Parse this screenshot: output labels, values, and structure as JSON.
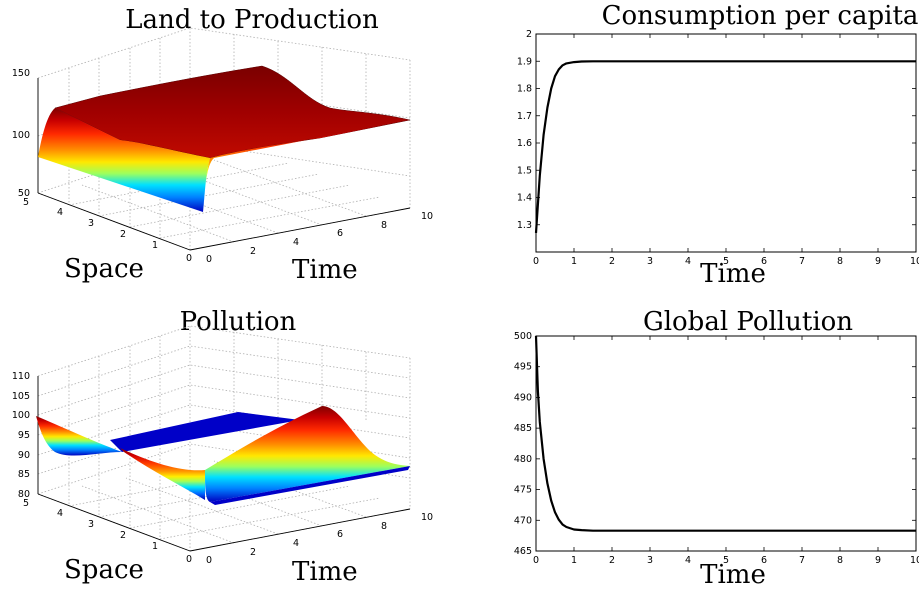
{
  "chart_data": [
    {
      "type": "surface",
      "title": "Land to Production",
      "xlabel": "Time",
      "ylabel": "Space",
      "x_ticks": [
        "0",
        "2",
        "4",
        "6",
        "8",
        "10"
      ],
      "y_ticks": [
        "0",
        "1",
        "2",
        "3",
        "4",
        "5"
      ],
      "z_ticks": [
        "50",
        "100",
        "150"
      ],
      "xlim": [
        0,
        10
      ],
      "ylim": [
        0,
        5
      ],
      "zlim": [
        50,
        150
      ],
      "colormap": "jet",
      "grid": true,
      "surface_points": [
        {
          "t": 0,
          "space_profile": [
            {
              "s": 0,
              "z": 80
            },
            {
              "s": 0.5,
              "z": 95
            },
            {
              "s": 1,
              "z": 110
            },
            {
              "s": 1.5,
              "z": 120
            },
            {
              "s": 2.5,
              "z": 124
            },
            {
              "s": 5,
              "z": 124
            }
          ]
        },
        {
          "t": 1,
          "space_profile": [
            {
              "s": 0,
              "z": 80
            },
            {
              "s": 1,
              "z": 80
            },
            {
              "s": 1.5,
              "z": 90
            },
            {
              "s": 2,
              "z": 108
            },
            {
              "s": 2.5,
              "z": 122
            },
            {
              "s": 3,
              "z": 130
            },
            {
              "s": 5,
              "z": 132
            }
          ]
        },
        {
          "t": 10,
          "space_profile": [
            {
              "s": 0,
              "z": 112
            },
            {
              "s": 5,
              "z": 113
            }
          ]
        }
      ]
    },
    {
      "type": "line",
      "title": "Consumption per capita",
      "xlabel": "Time",
      "ylabel": "",
      "xlim": [
        0,
        10
      ],
      "ylim": [
        1.2,
        2
      ],
      "x_ticks": [
        "0",
        "1",
        "2",
        "3",
        "4",
        "5",
        "6",
        "7",
        "8",
        "9",
        "10"
      ],
      "y_ticks": [
        "1.3",
        "1.4",
        "1.5",
        "1.6",
        "1.7",
        "1.8",
        "1.9",
        "2"
      ],
      "series": [
        {
          "x": [
            0,
            0.1,
            0.2,
            0.3,
            0.4,
            0.5,
            0.6,
            0.7,
            0.8,
            1.0,
            1.2,
            1.5,
            2,
            3,
            5,
            10
          ],
          "y": [
            1.27,
            1.48,
            1.63,
            1.73,
            1.8,
            1.845,
            1.87,
            1.885,
            1.892,
            1.897,
            1.899,
            1.9,
            1.9,
            1.9,
            1.9,
            1.9
          ]
        }
      ]
    },
    {
      "type": "surface",
      "title": "Pollution",
      "xlabel": "Time",
      "ylabel": "Space",
      "x_ticks": [
        "0",
        "2",
        "4",
        "6",
        "8",
        "10"
      ],
      "y_ticks": [
        "0",
        "1",
        "2",
        "3",
        "4",
        "5"
      ],
      "z_ticks": [
        "80",
        "85",
        "90",
        "95",
        "100",
        "105",
        "110"
      ],
      "xlim": [
        0,
        10
      ],
      "ylim": [
        0,
        5
      ],
      "zlim": [
        80,
        110
      ],
      "colormap": "jet",
      "grid": true,
      "surface_points": [
        {
          "t": 0,
          "space_profile": [
            {
              "s": 0,
              "z": 86
            },
            {
              "s": 1,
              "z": 92
            },
            {
              "s": 2.5,
              "z": 95
            },
            {
              "s": 4,
              "z": 92
            },
            {
              "s": 5,
              "z": 100
            }
          ]
        },
        {
          "t": 10,
          "space_profile": [
            {
              "s": 0,
              "z": 93
            },
            {
              "s": 2.5,
              "z": 106
            },
            {
              "s": 5,
              "z": 98
            }
          ]
        }
      ]
    },
    {
      "type": "line",
      "title": "Global Pollution",
      "xlabel": "Time",
      "ylabel": "",
      "xlim": [
        0,
        10
      ],
      "ylim": [
        465,
        500
      ],
      "x_ticks": [
        "0",
        "1",
        "2",
        "3",
        "4",
        "5",
        "6",
        "7",
        "8",
        "9",
        "10"
      ],
      "y_ticks": [
        "465",
        "470",
        "475",
        "480",
        "485",
        "490",
        "495",
        "500"
      ],
      "series": [
        {
          "x": [
            0,
            0.05,
            0.1,
            0.2,
            0.3,
            0.4,
            0.5,
            0.6,
            0.7,
            0.8,
            1.0,
            1.2,
            1.5,
            2,
            3,
            5,
            10
          ],
          "y": [
            500,
            491,
            486,
            480,
            476,
            473.2,
            471.3,
            470.1,
            469.3,
            468.9,
            468.5,
            468.4,
            468.3,
            468.3,
            468.3,
            468.3,
            468.3
          ]
        }
      ]
    }
  ]
}
